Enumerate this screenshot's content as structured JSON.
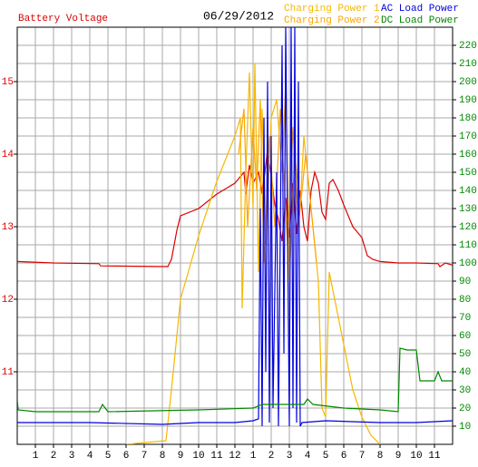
{
  "chart_data": {
    "type": "line",
    "date": "06/29/2012",
    "xlim": [
      0,
      24
    ],
    "xticks": [
      1,
      2,
      3,
      4,
      5,
      6,
      7,
      8,
      9,
      10,
      11,
      12,
      {
        "value": 13,
        "label": "1"
      },
      {
        "value": 14,
        "label": "2"
      },
      {
        "value": 15,
        "label": "3"
      },
      {
        "value": 16,
        "label": "4"
      },
      {
        "value": 17,
        "label": "5"
      },
      {
        "value": 18,
        "label": "6"
      },
      {
        "value": 19,
        "label": "7"
      },
      {
        "value": 20,
        "label": "8"
      },
      {
        "value": 21,
        "label": "9"
      },
      {
        "value": 22,
        "label": "10"
      },
      {
        "value": 23,
        "label": "11"
      }
    ],
    "ylim": [
      10,
      15.75
    ],
    "yticks": [
      11,
      12,
      13,
      14,
      15
    ],
    "y2lim": [
      0,
      230
    ],
    "y2ticks": [
      10,
      20,
      30,
      40,
      50,
      60,
      70,
      80,
      90,
      100,
      110,
      120,
      130,
      140,
      150,
      160,
      170,
      180,
      190,
      200,
      210,
      220
    ],
    "grid": true,
    "series": [
      {
        "name": "Battery Voltage",
        "color": "#dd0000",
        "x": [
          0,
          2,
          4.5,
          4.6,
          8.3,
          8.5,
          8.8,
          9,
          10,
          11,
          12,
          12.5,
          12.6,
          12.8,
          13,
          13.3,
          13.5,
          13.8,
          14,
          14.2,
          14.4,
          14.6,
          14.8,
          15,
          15.2,
          15.4,
          15.6,
          15.8,
          16,
          16.2,
          16.4,
          16.6,
          16.8,
          17,
          17.2,
          17.4,
          17.7,
          18,
          18.5,
          19,
          19.3,
          19.6,
          20,
          21,
          22,
          23.2,
          23.3,
          23.6,
          24
        ],
        "values": [
          12.52,
          12.5,
          12.49,
          12.46,
          12.45,
          12.55,
          12.95,
          13.15,
          13.25,
          13.45,
          13.6,
          13.75,
          13.45,
          13.85,
          13.6,
          13.75,
          13.45,
          14.05,
          13.7,
          13.3,
          13.1,
          12.8,
          13.4,
          12.85,
          13.6,
          12.9,
          13.5,
          13,
          12.8,
          13.5,
          13.75,
          13.6,
          13.2,
          13.1,
          13.6,
          13.65,
          13.5,
          13.3,
          13,
          12.85,
          12.6,
          12.55,
          12.52,
          12.5,
          12.5,
          12.49,
          12.45,
          12.5,
          12.47
        ]
      },
      {
        "name": "Charging Power 1",
        "color": "#f5b800",
        "axis": "y2",
        "x": [
          6,
          8.2,
          8.5,
          9,
          10,
          11,
          12,
          12.3,
          12.4,
          12.6,
          12.8,
          13,
          13.1,
          13.3,
          13.5,
          13.7,
          14,
          14.3,
          14.6,
          14.8,
          15,
          15.3,
          15.6,
          15.8,
          16,
          16.3,
          16.6,
          16.8,
          17,
          17.2,
          17.5,
          18,
          18.5,
          19,
          19.5,
          20
        ],
        "values": [
          0,
          2,
          30,
          80,
          115,
          145,
          170,
          180,
          75,
          150,
          205,
          130,
          210,
          95,
          185,
          110,
          180,
          190,
          150,
          200,
          90,
          160,
          130,
          170,
          150,
          120,
          90,
          20,
          15,
          95,
          80,
          55,
          30,
          15,
          5,
          0
        ]
      },
      {
        "name": "Charging Power 2",
        "color": "#ffa500",
        "axis": "y2",
        "x": [
          12.2,
          12.5,
          12.7,
          13,
          13.2,
          13.4,
          13.6,
          13.9,
          14.2,
          14.5,
          14.9,
          15.2,
          15.5,
          15.9,
          16.2,
          16.5
        ],
        "values": [
          160,
          185,
          120,
          175,
          140,
          190,
          100,
          170,
          120,
          185,
          110,
          175,
          120,
          160,
          130,
          100
        ]
      },
      {
        "name": "AC Load Power",
        "color": "#0000dd",
        "axis": "y2",
        "x": [
          0,
          4,
          8,
          10,
          12,
          13,
          13.3,
          13.4,
          13.5,
          13.6,
          13.7,
          13.8,
          13.9,
          14,
          14.1,
          14.3,
          14.4,
          14.6,
          14.7,
          14.8,
          15,
          15.1,
          15.2,
          15.3,
          15.4,
          15.5,
          15.6,
          15.7,
          17,
          20,
          22,
          24
        ],
        "values": [
          12,
          12,
          11,
          12,
          12,
          13,
          14,
          130,
          10,
          180,
          40,
          200,
          12,
          170,
          20,
          150,
          10,
          220,
          50,
          230,
          10,
          230,
          20,
          230,
          12,
          200,
          10,
          12,
          13,
          12,
          12,
          13
        ]
      },
      {
        "name": "DC Load Power",
        "color": "#008800",
        "axis": "y2",
        "x": [
          0,
          0.05,
          1,
          4.5,
          4.7,
          5,
          10,
          13,
          13.5,
          15.8,
          16,
          16.3,
          18,
          20,
          21,
          21.1,
          21.5,
          22,
          22.2,
          23,
          23.2,
          23.4,
          24
        ],
        "values": [
          25,
          19,
          18,
          18,
          22,
          18,
          19,
          20,
          22,
          22,
          25,
          22,
          20,
          19,
          18,
          53,
          52,
          52,
          35,
          35,
          40,
          35,
          35
        ]
      }
    ]
  }
}
